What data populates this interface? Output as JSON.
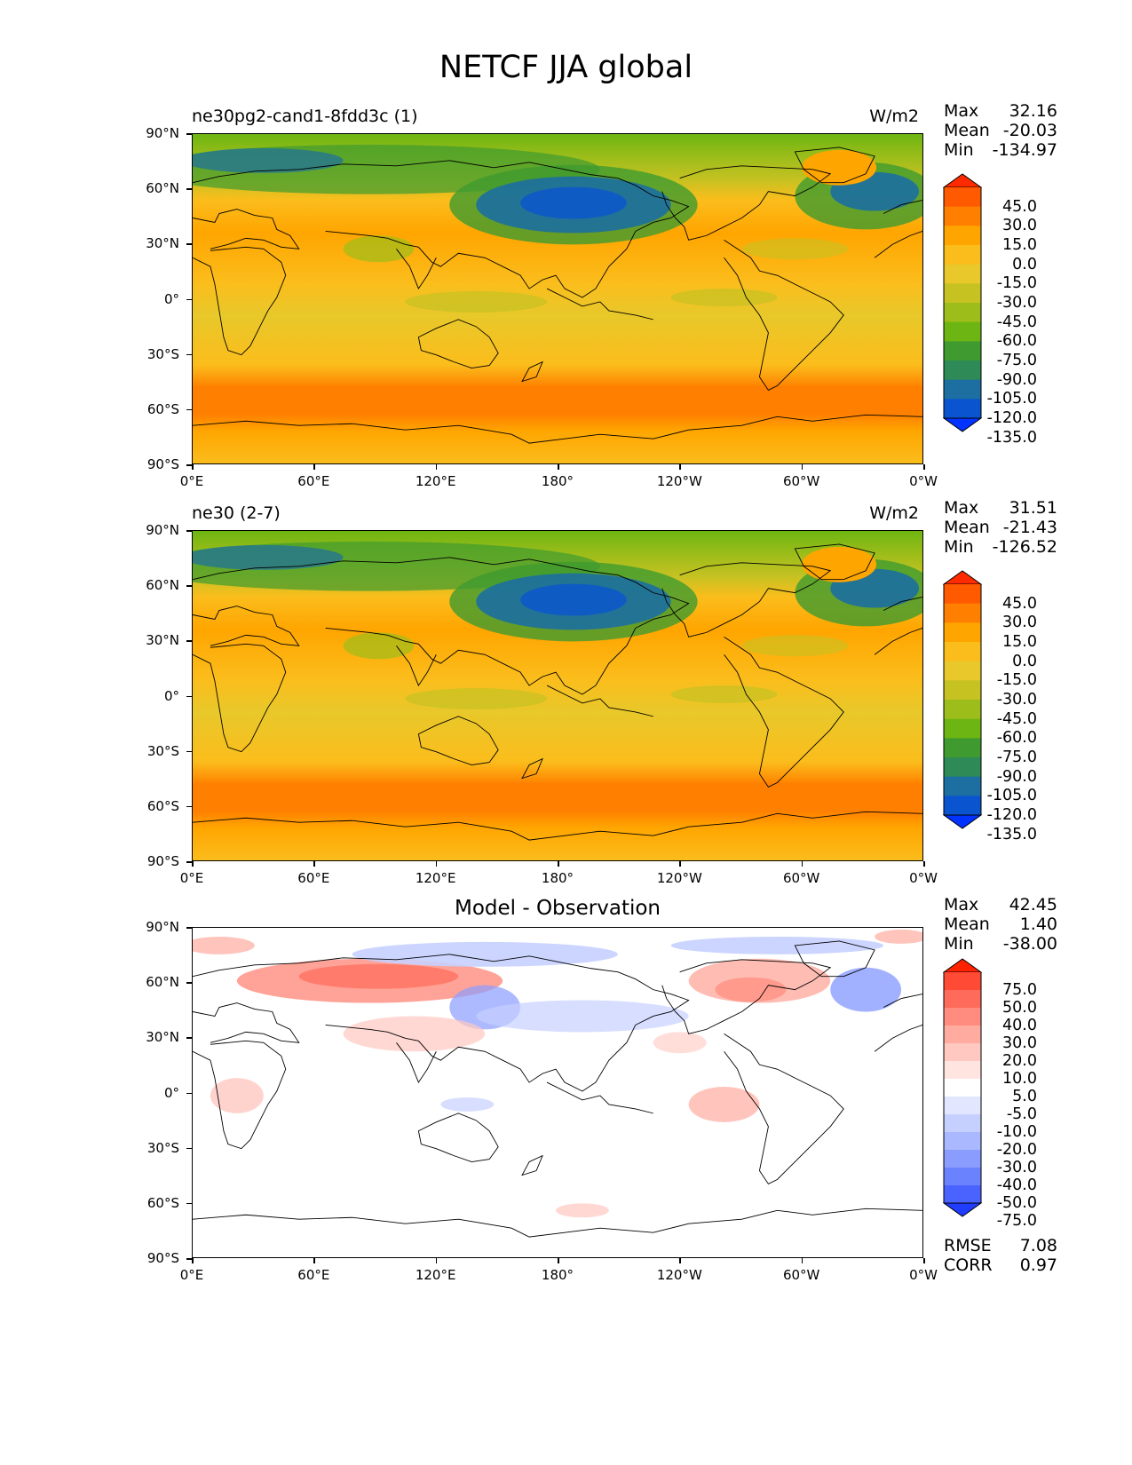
{
  "figure_title": "NETCF JJA global",
  "units": "W/m2",
  "x_ticks": [
    "0°E",
    "60°E",
    "120°E",
    "180°",
    "120°W",
    "60°W",
    "0°W"
  ],
  "y_ticks": [
    "90°N",
    "60°N",
    "30°N",
    "0°",
    "30°S",
    "60°S",
    "90°S"
  ],
  "panels": [
    {
      "id": "model1",
      "title": "ne30pg2-cand1-8fdd3c (1)",
      "units": "W/m2",
      "stats": {
        "max_label": "Max",
        "max": "32.16",
        "mean_label": "Mean",
        "mean": "-20.03",
        "min_label": "Min",
        "min": "-134.97"
      }
    },
    {
      "id": "model2",
      "title": "ne30 (2-7)",
      "units": "W/m2",
      "stats": {
        "max_label": "Max",
        "max": "31.51",
        "mean_label": "Mean",
        "mean": "-21.43",
        "min_label": "Min",
        "min": "-126.52"
      }
    },
    {
      "id": "diff",
      "title": "Model - Observation",
      "stats": {
        "max_label": "Max",
        "max": "42.45",
        "mean_label": "Mean",
        "mean": "1.40",
        "min_label": "Min",
        "min": "-38.00"
      },
      "rmse_label": "RMSE",
      "rmse": "7.08",
      "corr_label": "CORR",
      "corr": "0.97"
    }
  ],
  "colorbar_main": {
    "levels": [
      "45.0",
      "30.0",
      "15.0",
      "0.0",
      "-15.0",
      "-30.0",
      "-45.0",
      "-60.0",
      "-75.0",
      "-90.0",
      "-105.0",
      "-120.0",
      "-135.0"
    ],
    "colors": [
      "#ff2a00",
      "#ff5a00",
      "#ff8000",
      "#ffa500",
      "#fbbd1c",
      "#e8c82a",
      "#c6c222",
      "#9cbd1a",
      "#6db512",
      "#3f9b2f",
      "#2e8a56",
      "#1c6fa0",
      "#0a55cf",
      "#0033ff"
    ]
  },
  "colorbar_diff": {
    "levels": [
      "75.0",
      "50.0",
      "40.0",
      "30.0",
      "20.0",
      "10.0",
      "5.0",
      "-5.0",
      "-10.0",
      "-20.0",
      "-30.0",
      "-40.0",
      "-50.0",
      "-75.0"
    ],
    "colors": [
      "#ff2200",
      "#ff4a35",
      "#ff6b5a",
      "#ff8c7e",
      "#ffaba0",
      "#ffc8c0",
      "#ffe4e0",
      "#ffffff",
      "#e2e7ff",
      "#c6d0ff",
      "#a9b8ff",
      "#8a9dff",
      "#6b82ff",
      "#4a63ff",
      "#1f3cff"
    ]
  }
}
